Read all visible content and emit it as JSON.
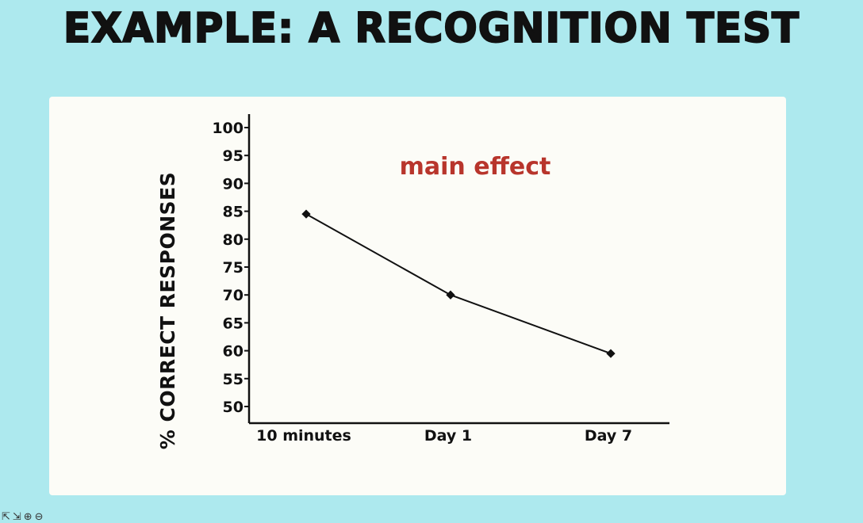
{
  "slide": {
    "title": "EXAMPLE: A RECOGNITION TEST"
  },
  "chart_data": {
    "type": "line",
    "title": "",
    "annotation": "main effect",
    "xlabel": "",
    "ylabel": "% CORRECT RESPONSES",
    "categories": [
      "10 minutes",
      "Day 1",
      "Day 7"
    ],
    "ylim": [
      50,
      100
    ],
    "yticks": [
      50,
      55,
      60,
      65,
      70,
      75,
      80,
      85,
      90,
      95,
      100
    ],
    "series": [
      {
        "values": [
          84.5,
          70,
          59.5
        ]
      }
    ],
    "grid": false,
    "legend": "none",
    "colors": {
      "line": "#111111",
      "annotation": "#b8352c"
    }
  }
}
